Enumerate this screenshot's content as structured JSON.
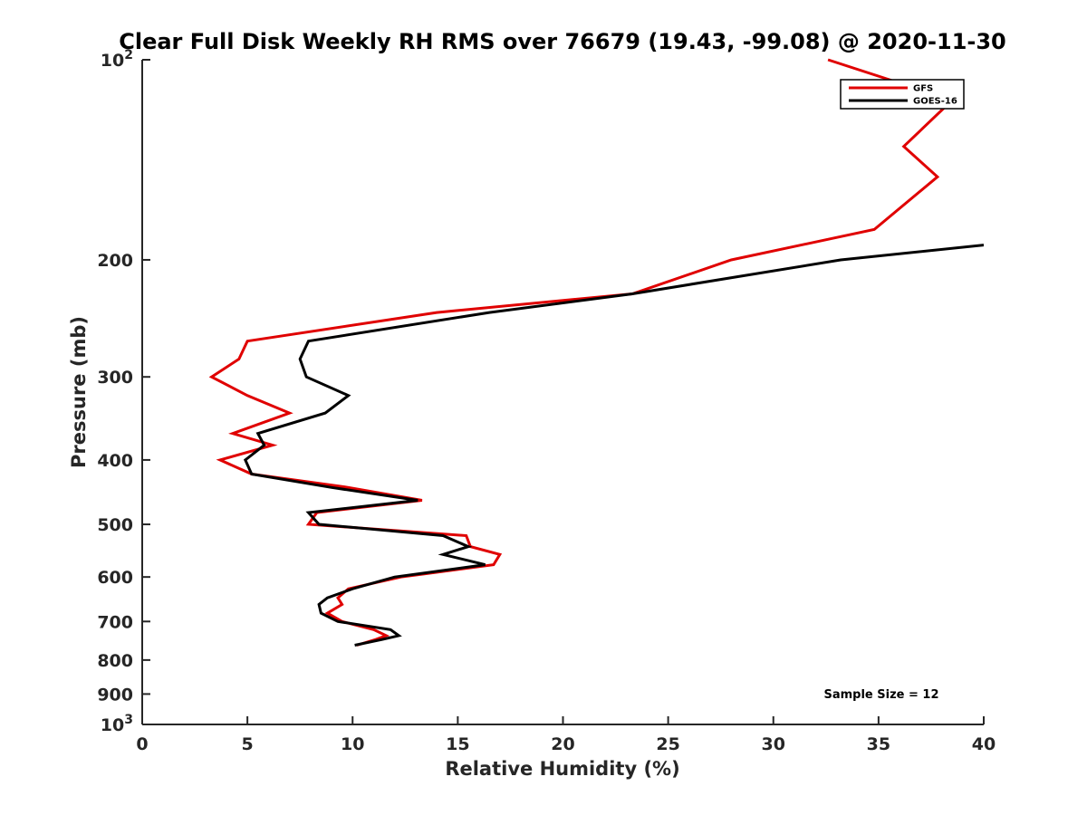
{
  "chart_data": {
    "type": "line",
    "title": "Clear Full Disk Weekly RH RMS over 76679 (19.43, -99.08) @ 2020-11-30",
    "xlabel": "Relative Humidity (%)",
    "ylabel": "Pressure (mb)",
    "xlim": [
      0,
      40
    ],
    "ylim": [
      100,
      1000
    ],
    "y_scale": "log",
    "y_reversed": true,
    "grid": false,
    "legend_position": "top-right",
    "x_ticks": [
      0,
      5,
      10,
      15,
      20,
      25,
      30,
      35,
      40
    ],
    "y_ticks": [
      {
        "value": 100,
        "base": "10",
        "exp": "2"
      },
      {
        "value": 200,
        "label": "200"
      },
      {
        "value": 300,
        "label": "300"
      },
      {
        "value": 400,
        "label": "400"
      },
      {
        "value": 500,
        "label": "500"
      },
      {
        "value": 600,
        "label": "600"
      },
      {
        "value": 700,
        "label": "700"
      },
      {
        "value": 800,
        "label": "800"
      },
      {
        "value": 900,
        "label": "900"
      },
      {
        "value": 1000,
        "base": "10",
        "exp": "3"
      }
    ],
    "series": [
      {
        "name": "GFS",
        "color": "#e00000",
        "points": [
          [
            32.6,
            100
          ],
          [
            38.5,
            115
          ],
          [
            36.2,
            135
          ],
          [
            37.8,
            150
          ],
          [
            34.8,
            180
          ],
          [
            28,
            200
          ],
          [
            23.3,
            225
          ],
          [
            14,
            240
          ],
          [
            5,
            265
          ],
          [
            4.6,
            282
          ],
          [
            3.3,
            300
          ],
          [
            5,
            320
          ],
          [
            7,
            340
          ],
          [
            4.3,
            365
          ],
          [
            6.2,
            380
          ],
          [
            3.7,
            400
          ],
          [
            5.2,
            420
          ],
          [
            9.8,
            440
          ],
          [
            13.3,
            460
          ],
          [
            8.3,
            480
          ],
          [
            7.9,
            500
          ],
          [
            15.4,
            520
          ],
          [
            15.6,
            540
          ],
          [
            17,
            555
          ],
          [
            16.7,
            575
          ],
          [
            12.3,
            600
          ],
          [
            9.8,
            625
          ],
          [
            9.3,
            645
          ],
          [
            9.5,
            660
          ],
          [
            8.8,
            680
          ],
          [
            9.5,
            700
          ],
          [
            11,
            720
          ],
          [
            11.6,
            735
          ],
          [
            11.1,
            745
          ],
          [
            10.2,
            760
          ]
        ]
      },
      {
        "name": "GOES-16",
        "color": "#000000",
        "points": [
          [
            40,
            190
          ],
          [
            33.2,
            200
          ],
          [
            23.3,
            225
          ],
          [
            16.5,
            240
          ],
          [
            7.9,
            265
          ],
          [
            7.5,
            282
          ],
          [
            7.8,
            300
          ],
          [
            9.8,
            320
          ],
          [
            8.7,
            340
          ],
          [
            5.5,
            365
          ],
          [
            5.8,
            380
          ],
          [
            4.9,
            400
          ],
          [
            5.2,
            420
          ],
          [
            9,
            440
          ],
          [
            13.1,
            460
          ],
          [
            7.9,
            480
          ],
          [
            8.4,
            500
          ],
          [
            14.3,
            520
          ],
          [
            15.5,
            540
          ],
          [
            14.3,
            555
          ],
          [
            16.3,
            575
          ],
          [
            12,
            600
          ],
          [
            10,
            625
          ],
          [
            8.8,
            645
          ],
          [
            8.4,
            660
          ],
          [
            8.5,
            680
          ],
          [
            9.3,
            700
          ],
          [
            11.8,
            720
          ],
          [
            12.2,
            735
          ],
          [
            11.4,
            745
          ],
          [
            10.1,
            760
          ]
        ]
      }
    ],
    "annotations": [
      "Sample Size = 12"
    ]
  }
}
